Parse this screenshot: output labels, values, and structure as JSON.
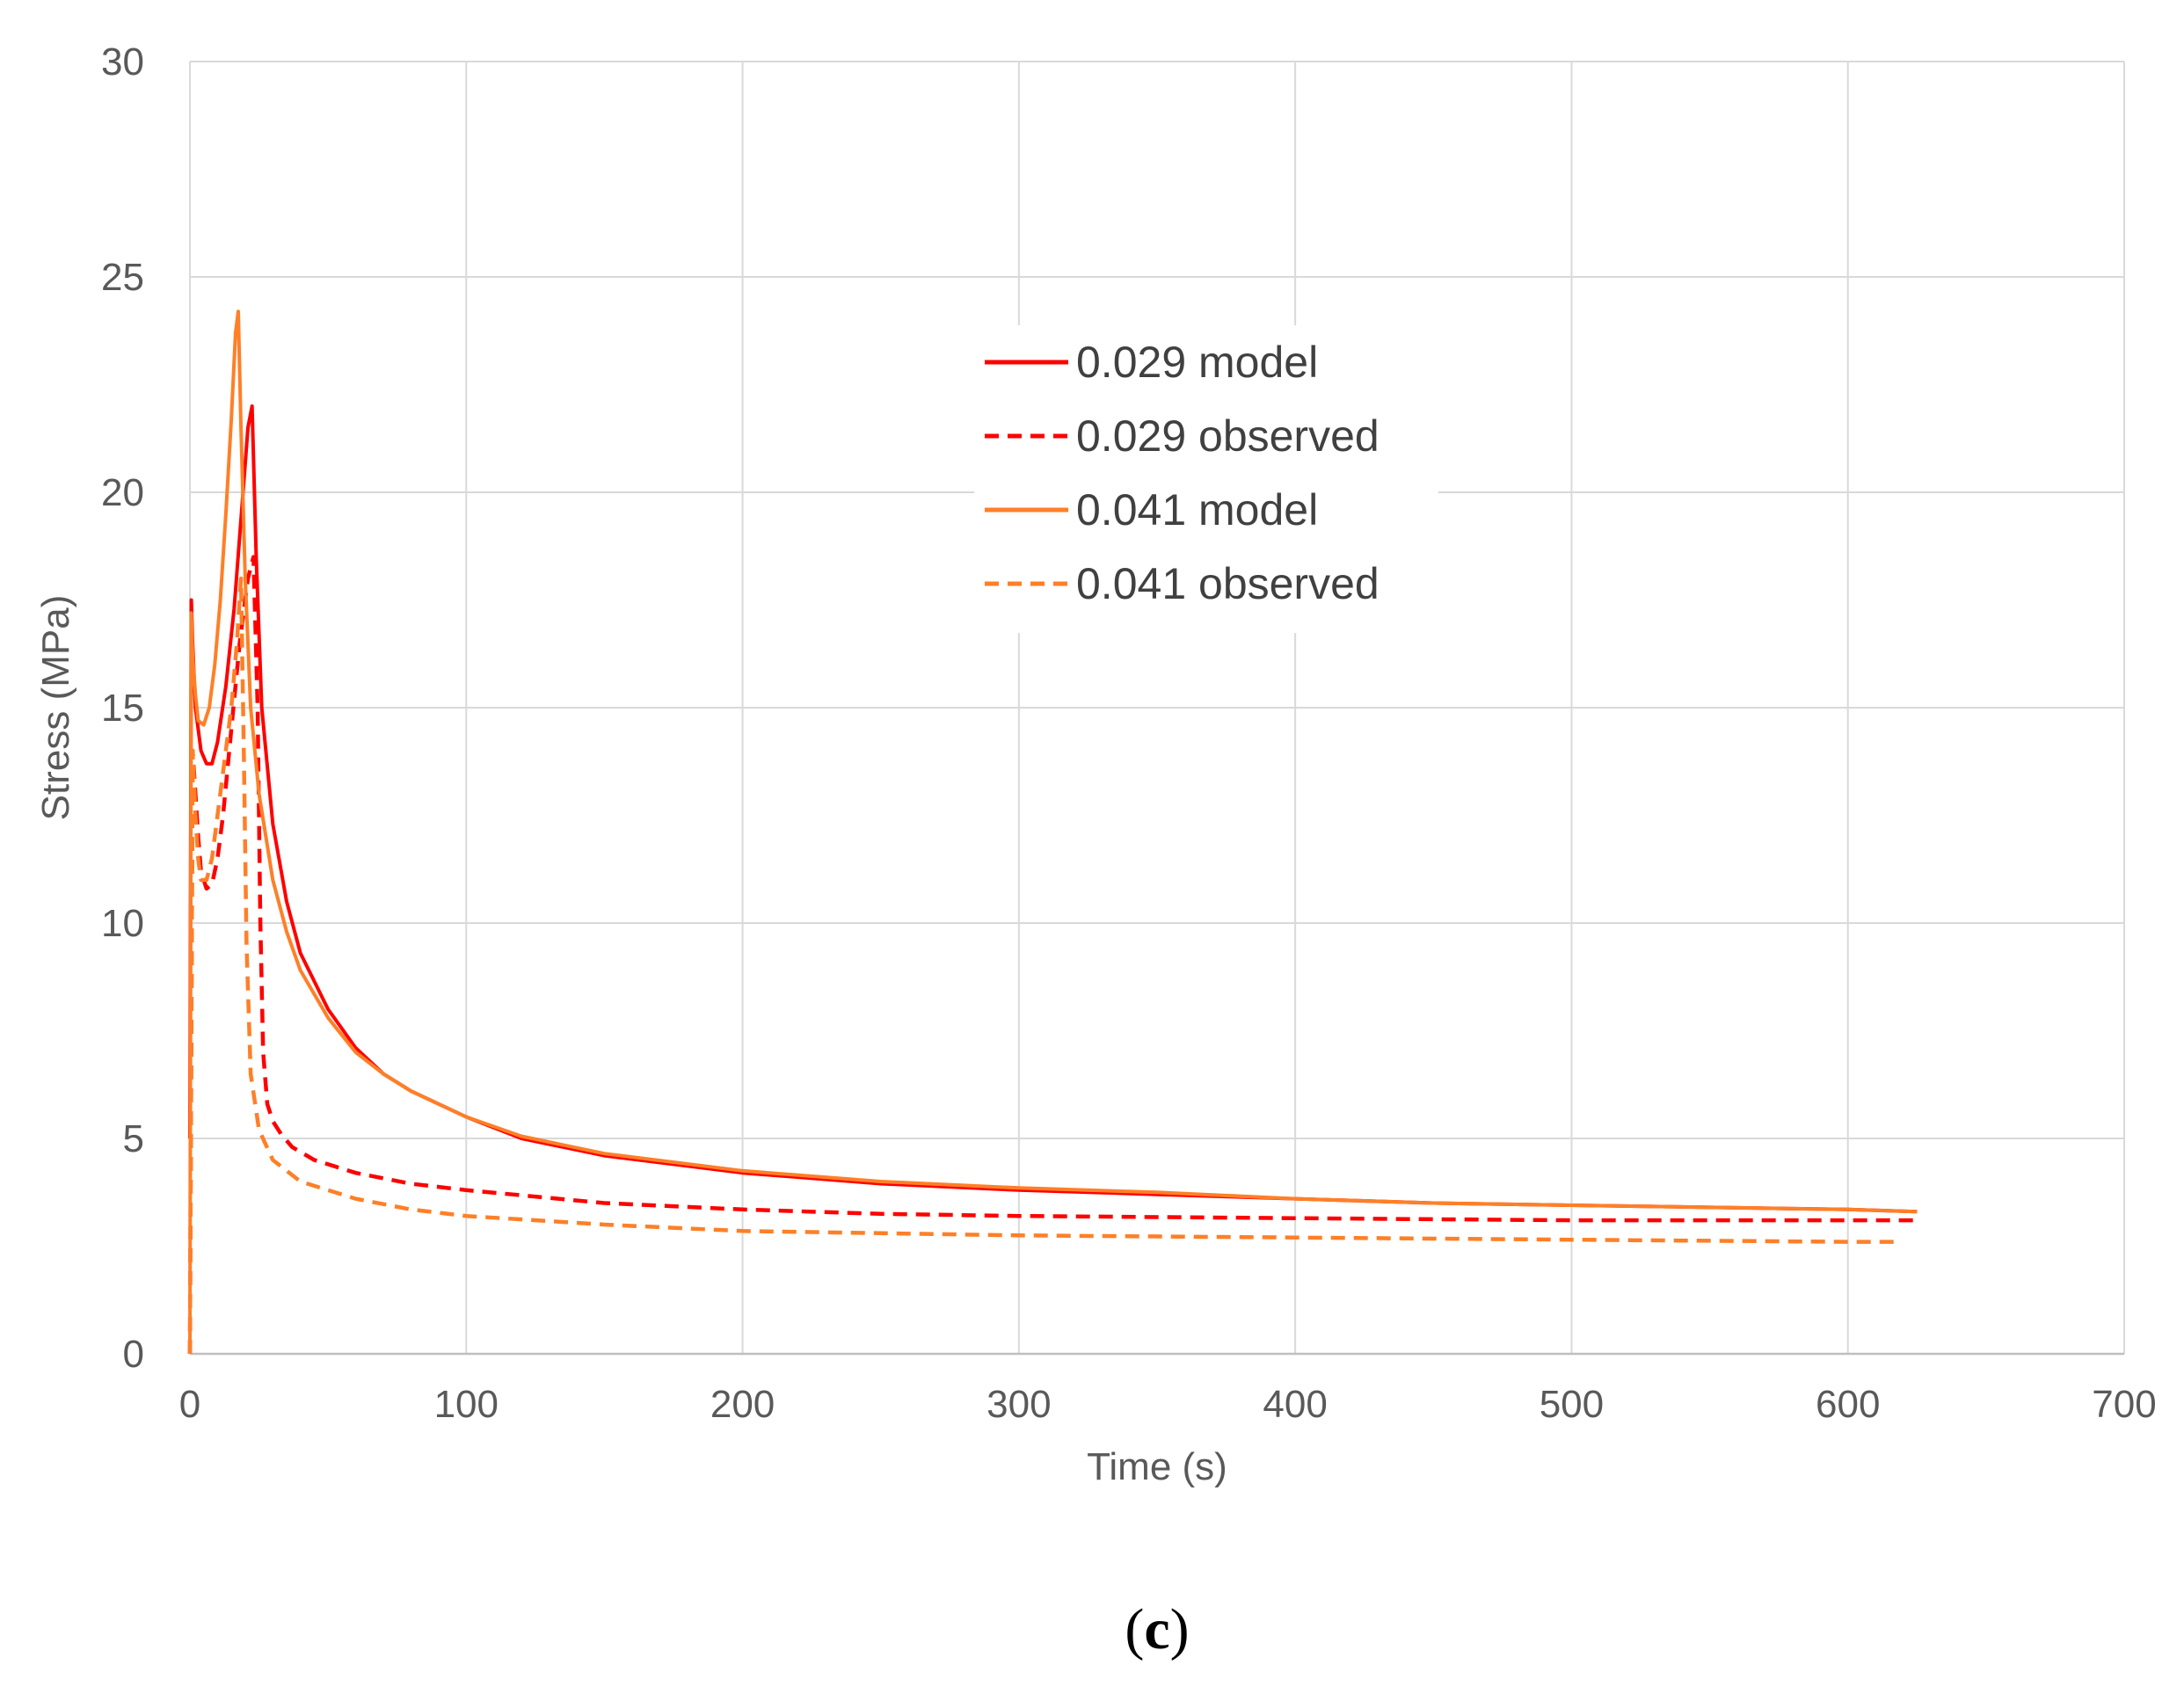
{
  "chart_data": {
    "type": "line",
    "title": "",
    "xlabel": "Time (s)",
    "ylabel": "Stress (MPa)",
    "xlim": [
      0,
      700
    ],
    "ylim": [
      0,
      30
    ],
    "xticks": [
      0,
      100,
      200,
      300,
      400,
      500,
      600,
      700
    ],
    "yticks": [
      0,
      5,
      10,
      15,
      20,
      25,
      30
    ],
    "xtick_labels": [
      "0",
      "100",
      "200",
      "300",
      "400",
      "500",
      "600",
      "700"
    ],
    "ytick_labels": [
      "0",
      "5",
      "10",
      "15",
      "20",
      "25",
      "30"
    ],
    "grid": true,
    "legend_position": "upper-center",
    "series": [
      {
        "name": "0.029 model",
        "color": "#ff0000",
        "style": "solid",
        "x": [
          0,
          0.5,
          1,
          2,
          4,
          6,
          8,
          10,
          13,
          16,
          19,
          21,
          22.5,
          24,
          26,
          30,
          35,
          40,
          50,
          60,
          70,
          80,
          100,
          120,
          150,
          200,
          250,
          300,
          350,
          400,
          450,
          500,
          550,
          600,
          625
        ],
        "y": [
          5,
          17.5,
          16.5,
          15,
          14,
          13.7,
          13.7,
          14.2,
          15.5,
          17.3,
          19.8,
          21.5,
          22,
          18.5,
          15,
          12.3,
          10.5,
          9.3,
          8,
          7.1,
          6.5,
          6.1,
          5.5,
          5.0,
          4.6,
          4.2,
          3.95,
          3.8,
          3.7,
          3.6,
          3.5,
          3.45,
          3.4,
          3.35,
          3.3
        ]
      },
      {
        "name": "0.029 observed",
        "color": "#ff0000",
        "style": "dashed",
        "x": [
          0,
          1,
          2,
          3,
          4,
          6,
          8,
          10,
          12,
          15,
          18,
          21,
          23,
          24.5,
          25.5,
          26.5,
          28,
          30,
          33,
          37,
          45,
          60,
          80,
          100,
          150,
          200,
          250,
          300,
          400,
          500,
          600,
          625
        ],
        "y": [
          0,
          14,
          13,
          12,
          11.2,
          10.8,
          10.9,
          11.5,
          12.5,
          14.5,
          16.5,
          18,
          18.5,
          15,
          10,
          7,
          5.8,
          5.4,
          5.1,
          4.8,
          4.5,
          4.2,
          3.95,
          3.8,
          3.5,
          3.35,
          3.25,
          3.2,
          3.15,
          3.1,
          3.1,
          3.1
        ]
      },
      {
        "name": "0.041 model",
        "color": "#ff7f27",
        "style": "solid",
        "x": [
          0,
          0.5,
          1,
          2,
          3,
          5,
          7,
          9,
          11,
          13,
          15,
          16.5,
          17.5,
          18.5,
          20,
          22,
          25,
          30,
          35,
          40,
          50,
          60,
          70,
          80,
          100,
          120,
          150,
          200,
          250,
          300,
          350,
          400,
          450,
          500,
          550,
          600,
          625
        ],
        "y": [
          0,
          17.2,
          16.2,
          15.3,
          14.7,
          14.6,
          15,
          16,
          17.5,
          19.5,
          21.7,
          23.7,
          24.2,
          21.5,
          18,
          15,
          13,
          11,
          9.8,
          8.9,
          7.8,
          7,
          6.5,
          6.1,
          5.5,
          5.05,
          4.65,
          4.25,
          4.0,
          3.85,
          3.75,
          3.6,
          3.5,
          3.45,
          3.4,
          3.35,
          3.3
        ]
      },
      {
        "name": "0.041 observed",
        "color": "#ff7f27",
        "style": "dashed",
        "x": [
          0,
          1,
          2,
          3,
          4,
          6,
          8,
          10,
          12,
          15,
          17,
          18.5,
          19.5,
          20.5,
          22,
          25,
          30,
          40,
          50,
          60,
          80,
          100,
          150,
          200,
          250,
          300,
          400,
          500,
          600,
          618
        ],
        "y": [
          0,
          14,
          12.5,
          11.5,
          11,
          11,
          11.5,
          12.5,
          13.5,
          15,
          16.5,
          18,
          14,
          9.5,
          6.5,
          5.2,
          4.5,
          4.0,
          3.8,
          3.6,
          3.35,
          3.2,
          3.0,
          2.85,
          2.8,
          2.75,
          2.7,
          2.65,
          2.6,
          2.6
        ]
      }
    ]
  },
  "panel_label": {
    "open": "(",
    "letter": "c",
    "close": ")"
  }
}
